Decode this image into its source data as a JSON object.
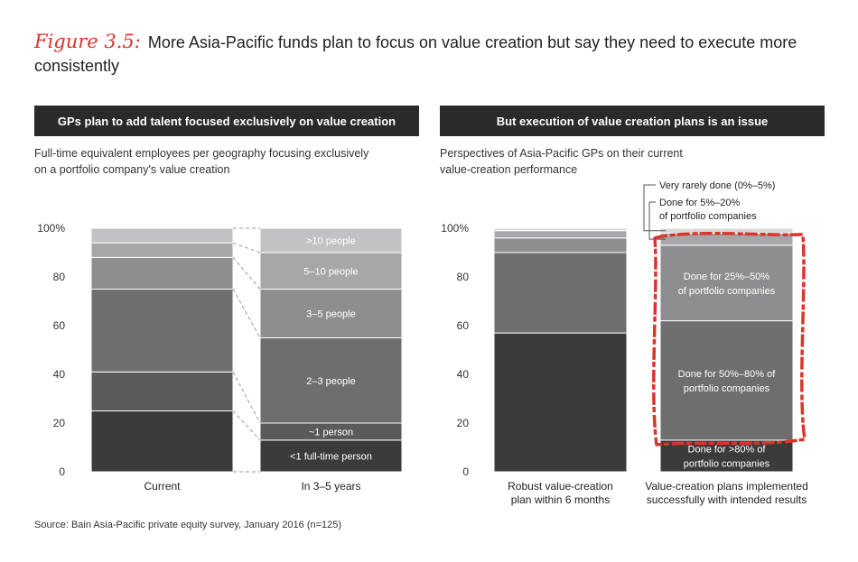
{
  "figure": {
    "label": "Figure 3.5:",
    "title": "More Asia-Pacific funds plan to focus on value creation but say they need to execute more consistently"
  },
  "left_panel": {
    "header": "GPs plan to add talent focused exclusively on value creation",
    "subtitle_line1": "Full-time equivalent employees per geography focusing exclusively",
    "subtitle_line2": "on a portfolio company's value creation"
  },
  "right_panel": {
    "header": "But execution of value creation plans is an issue",
    "subtitle_line1": "Perspectives of Asia-Pacific GPs on their current",
    "subtitle_line2": "value-creation performance"
  },
  "source": "Source: Bain Asia-Pacific private equity survey, January 2016 (n=125)",
  "colors": {
    "accent_red": "#d9352b",
    "header_bg": "#2a2a2a",
    "seg_darkest": "#3b3b3b",
    "seg_dark": "#5a5a5a",
    "seg_mid": "#6e6e6f",
    "seg_light": "#8e8e90",
    "seg_lighter": "#a7a7a9",
    "seg_pale": "#c2c2c4",
    "seg_palest": "#d9d9da"
  },
  "chart_data": [
    {
      "type": "bar",
      "stacked": true,
      "title": "GPs plan to add talent focused exclusively on value creation",
      "ylim": [
        0,
        100
      ],
      "yticks": [
        "0",
        "20",
        "40",
        "60",
        "80",
        "100%"
      ],
      "categories": [
        "Current",
        "In 3–5 years"
      ],
      "series": [
        {
          "name": "<1 full-time person",
          "values": [
            25,
            13
          ]
        },
        {
          "name": "~1 person",
          "values": [
            16,
            7
          ]
        },
        {
          "name": "2–3 people",
          "values": [
            34,
            35
          ]
        },
        {
          "name": "3–5 people",
          "values": [
            13,
            20
          ]
        },
        {
          "name": "5–10 people",
          "values": [
            6,
            15
          ]
        },
        {
          "name": ">10 people",
          "values": [
            6,
            10
          ]
        }
      ]
    },
    {
      "type": "bar",
      "stacked": true,
      "title": "But execution of value creation plans is an issue",
      "ylim": [
        0,
        100
      ],
      "yticks": [
        "0",
        "20",
        "40",
        "60",
        "80",
        "100%"
      ],
      "categories": [
        "Robust value-creation plan within 6 months",
        "Value-creation plans implemented successfully with intended results"
      ],
      "category_lines": [
        [
          "Robust value-creation",
          "plan within 6 months"
        ],
        [
          "Value-creation plans implemented",
          "successfully with intended results"
        ]
      ],
      "series": [
        {
          "name": "Done for >80% of portfolio companies",
          "values": [
            57,
            13
          ]
        },
        {
          "name": "Done for 50%–80% of portfolio companies",
          "values": [
            33,
            49
          ]
        },
        {
          "name": "Done for 25%–50% of portfolio companies",
          "values": [
            6,
            31
          ]
        },
        {
          "name": "Done for 5%–20% of portfolio companies",
          "values": [
            3,
            5
          ]
        },
        {
          "name": "Very rarely done (0%–5%)",
          "values": [
            1,
            2
          ]
        }
      ],
      "in_bar_labels": [
        {
          "series": 0,
          "lines": [
            "Done for >80% of",
            "portfolio companies"
          ]
        },
        {
          "series": 1,
          "lines": [
            "Done for 50%–80% of",
            "portfolio companies"
          ]
        },
        {
          "series": 2,
          "lines": [
            "Done for 25%–50%",
            "of portfolio companies"
          ]
        }
      ],
      "callouts": [
        {
          "series": 4,
          "lines": [
            "Very rarely done (0%–5%)"
          ]
        },
        {
          "series": 3,
          "lines": [
            "Done for 5%–20%",
            "of portfolio companies"
          ]
        }
      ]
    }
  ]
}
